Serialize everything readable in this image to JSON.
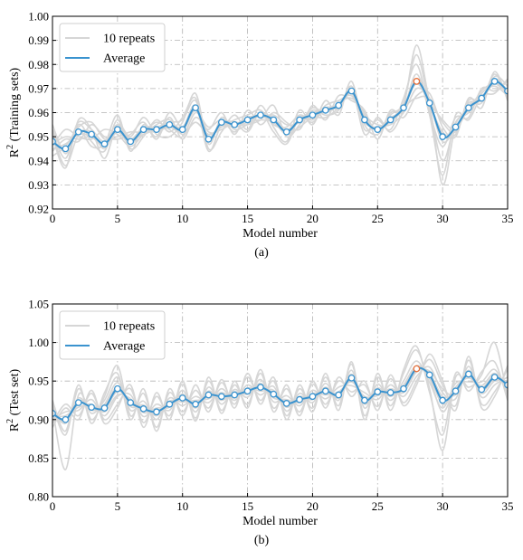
{
  "chart_data": [
    {
      "type": "line",
      "panel_label": "(a)",
      "xlabel": "Model number",
      "ylabel_main": "R",
      "ylabel_sup": "2",
      "ylabel_rest": "(Training sets)",
      "xlim": [
        0,
        35
      ],
      "ylim": [
        0.92,
        1.0
      ],
      "xticks": [
        "0",
        "5",
        "10",
        "15",
        "20",
        "25",
        "30",
        "35"
      ],
      "yticks": [
        "0.92",
        "0.93",
        "0.94",
        "0.95",
        "0.96",
        "0.97",
        "0.98",
        "0.99",
        "1.00"
      ],
      "grid": true,
      "legend": {
        "placement": "top-left",
        "entries": [
          "10 repeats",
          "Average"
        ]
      },
      "colors": {
        "repeats": "#d6d6d6",
        "average": "#3a93cf",
        "highlight": "#e8703a"
      },
      "highlight_x": 28,
      "x": [
        0,
        1,
        2,
        3,
        4,
        5,
        6,
        7,
        8,
        9,
        10,
        11,
        12,
        13,
        14,
        15,
        16,
        17,
        18,
        19,
        20,
        21,
        22,
        23,
        24,
        25,
        26,
        27,
        28,
        29,
        30,
        31,
        32,
        33,
        34,
        35
      ],
      "series": [
        {
          "name": "Average",
          "values": [
            0.948,
            0.945,
            0.952,
            0.951,
            0.947,
            0.953,
            0.948,
            0.953,
            0.953,
            0.955,
            0.953,
            0.962,
            0.949,
            0.956,
            0.955,
            0.957,
            0.959,
            0.957,
            0.952,
            0.957,
            0.959,
            0.961,
            0.963,
            0.969,
            0.957,
            0.953,
            0.957,
            0.962,
            0.973,
            0.964,
            0.95,
            0.954,
            0.962,
            0.966,
            0.973,
            0.969
          ]
        },
        {
          "name": "10 repeats",
          "values": [
            0.952,
            0.941,
            0.955,
            0.948,
            0.944,
            0.957,
            0.945,
            0.95,
            0.957,
            0.952,
            0.958,
            0.966,
            0.945,
            0.952,
            0.959,
            0.953,
            0.963,
            0.954,
            0.948,
            0.961,
            0.955,
            0.965,
            0.959,
            0.973,
            0.953,
            0.957,
            0.953,
            0.966,
            0.98,
            0.96,
            0.946,
            0.958,
            0.958,
            0.97,
            0.969,
            0.973
          ]
        },
        {
          "values": [
            0.944,
            0.949,
            0.948,
            0.955,
            0.95,
            0.949,
            0.951,
            0.956,
            0.949,
            0.958,
            0.949,
            0.958,
            0.953,
            0.96,
            0.951,
            0.961,
            0.955,
            0.96,
            0.956,
            0.953,
            0.963,
            0.957,
            0.967,
            0.965,
            0.961,
            0.949,
            0.961,
            0.958,
            0.967,
            0.968,
            0.954,
            0.95,
            0.966,
            0.962,
            0.977,
            0.965
          ]
        },
        {
          "values": [
            0.95,
            0.937,
            0.957,
            0.953,
            0.941,
            0.955,
            0.95,
            0.958,
            0.951,
            0.95,
            0.956,
            0.968,
            0.947,
            0.958,
            0.953,
            0.955,
            0.957,
            0.963,
            0.95,
            0.955,
            0.961,
            0.959,
            0.961,
            0.971,
            0.955,
            0.951,
            0.959,
            0.964,
            0.984,
            0.962,
            0.94,
            0.956,
            0.96,
            0.968,
            0.971,
            0.967
          ]
        },
        {
          "values": [
            0.946,
            0.953,
            0.95,
            0.949,
            0.953,
            0.951,
            0.946,
            0.951,
            0.955,
            0.957,
            0.951,
            0.956,
            0.951,
            0.954,
            0.957,
            0.959,
            0.961,
            0.955,
            0.954,
            0.959,
            0.957,
            0.963,
            0.965,
            0.967,
            0.959,
            0.955,
            0.955,
            0.96,
            0.97,
            0.966,
            0.956,
            0.952,
            0.964,
            0.964,
            0.975,
            0.971
          ]
        },
        {
          "values": [
            0.955,
            0.943,
            0.953,
            0.946,
            0.947,
            0.959,
            0.944,
            0.955,
            0.95,
            0.96,
            0.954,
            0.963,
            0.944,
            0.955,
            0.956,
            0.952,
            0.96,
            0.952,
            0.947,
            0.958,
            0.956,
            0.962,
            0.962,
            0.97,
            0.951,
            0.958,
            0.952,
            0.961,
            0.976,
            0.959,
            0.934,
            0.959,
            0.957,
            0.967,
            0.968,
            0.974
          ]
        },
        {
          "values": [
            0.942,
            0.946,
            0.954,
            0.956,
            0.949,
            0.95,
            0.952,
            0.952,
            0.956,
            0.953,
            0.95,
            0.96,
            0.954,
            0.957,
            0.952,
            0.958,
            0.958,
            0.959,
            0.955,
            0.956,
            0.962,
            0.96,
            0.964,
            0.966,
            0.96,
            0.952,
            0.96,
            0.963,
            0.988,
            0.965,
            0.952,
            0.951,
            0.965,
            0.965,
            0.976,
            0.966
          ]
        },
        {
          "values": [
            0.951,
            0.938,
            0.951,
            0.952,
            0.945,
            0.954,
            0.949,
            0.954,
            0.954,
            0.956,
            0.957,
            0.965,
            0.948,
            0.957,
            0.954,
            0.956,
            0.957,
            0.956,
            0.951,
            0.954,
            0.958,
            0.958,
            0.962,
            0.968,
            0.956,
            0.954,
            0.956,
            0.962,
            0.966,
            0.963,
            0.93,
            0.955,
            0.961,
            0.969,
            0.972,
            0.968
          ]
        },
        {
          "values": [
            0.947,
            0.95,
            0.949,
            0.95,
            0.946,
            0.952,
            0.947,
            0.952,
            0.952,
            0.954,
            0.952,
            0.961,
            0.95,
            0.955,
            0.955,
            0.957,
            0.959,
            0.958,
            0.953,
            0.957,
            0.96,
            0.961,
            0.963,
            0.969,
            0.958,
            0.953,
            0.957,
            0.962,
            0.972,
            0.964,
            0.957,
            0.953,
            0.962,
            0.966,
            0.973,
            0.969
          ]
        },
        {
          "values": [
            0.953,
            0.944,
            0.956,
            0.953,
            0.948,
            0.955,
            0.949,
            0.951,
            0.953,
            0.955,
            0.954,
            0.961,
            0.952,
            0.953,
            0.956,
            0.955,
            0.96,
            0.956,
            0.952,
            0.957,
            0.958,
            0.962,
            0.963,
            0.968,
            0.957,
            0.953,
            0.958,
            0.961,
            0.974,
            0.964,
            0.948,
            0.954,
            0.963,
            0.966,
            0.974,
            0.969
          ]
        },
        {
          "values": [
            0.945,
            0.947,
            0.951,
            0.95,
            0.946,
            0.952,
            0.947,
            0.954,
            0.952,
            0.955,
            0.952,
            0.963,
            0.95,
            0.956,
            0.955,
            0.958,
            0.958,
            0.957,
            0.951,
            0.957,
            0.96,
            0.96,
            0.963,
            0.969,
            0.957,
            0.953,
            0.957,
            0.963,
            0.973,
            0.964,
            0.951,
            0.953,
            0.962,
            0.966,
            0.972,
            0.969
          ]
        }
      ]
    },
    {
      "type": "line",
      "panel_label": "(b)",
      "xlabel": "Model number",
      "ylabel_main": "R",
      "ylabel_sup": "2",
      "ylabel_rest": "(Test set)",
      "xlim": [
        0,
        35
      ],
      "ylim": [
        0.8,
        1.05
      ],
      "xticks": [
        "0",
        "5",
        "10",
        "15",
        "20",
        "25",
        "30",
        "35"
      ],
      "yticks": [
        "0.80",
        "0.85",
        "0.90",
        "0.95",
        "1.00",
        "1.05"
      ],
      "grid": true,
      "legend": {
        "placement": "top-left",
        "entries": [
          "10 repeats",
          "Average"
        ]
      },
      "colors": {
        "repeats": "#d6d6d6",
        "average": "#3a93cf",
        "highlight": "#e8703a"
      },
      "highlight_x": 28,
      "x": [
        0,
        1,
        2,
        3,
        4,
        5,
        6,
        7,
        8,
        9,
        10,
        11,
        12,
        13,
        14,
        15,
        16,
        17,
        18,
        19,
        20,
        21,
        22,
        23,
        24,
        25,
        26,
        27,
        28,
        29,
        30,
        31,
        32,
        33,
        34,
        35
      ],
      "series": [
        {
          "name": "Average",
          "values": [
            0.908,
            0.9,
            0.922,
            0.916,
            0.915,
            0.94,
            0.922,
            0.914,
            0.91,
            0.92,
            0.928,
            0.92,
            0.932,
            0.93,
            0.932,
            0.937,
            0.942,
            0.933,
            0.921,
            0.926,
            0.93,
            0.937,
            0.932,
            0.954,
            0.925,
            0.936,
            0.935,
            0.94,
            0.966,
            0.958,
            0.925,
            0.937,
            0.959,
            0.939,
            0.955,
            0.945
          ]
        },
        {
          "name": "10 repeats",
          "values": [
            0.915,
            0.835,
            0.932,
            0.908,
            0.925,
            0.955,
            0.912,
            0.924,
            0.9,
            0.928,
            0.918,
            0.93,
            0.922,
            0.94,
            0.925,
            0.945,
            0.932,
            0.943,
            0.911,
            0.934,
            0.922,
            0.947,
            0.925,
            0.964,
            0.915,
            0.946,
            0.925,
            0.95,
            0.976,
            0.948,
            0.915,
            0.947,
            0.949,
            0.949,
            0.965,
            0.935
          ]
        },
        {
          "values": [
            0.9,
            0.91,
            0.912,
            0.926,
            0.905,
            0.93,
            0.932,
            0.904,
            0.92,
            0.912,
            0.938,
            0.91,
            0.942,
            0.92,
            0.939,
            0.929,
            0.952,
            0.923,
            0.931,
            0.918,
            0.938,
            0.927,
            0.942,
            0.944,
            0.935,
            0.926,
            0.945,
            0.93,
            0.956,
            0.968,
            0.935,
            0.927,
            0.969,
            0.929,
            0.945,
            0.955
          ]
        },
        {
          "values": [
            0.92,
            0.88,
            0.94,
            0.9,
            0.93,
            0.97,
            0.905,
            0.934,
            0.89,
            0.935,
            0.91,
            0.938,
            0.915,
            0.948,
            0.92,
            0.955,
            0.925,
            0.95,
            0.905,
            0.94,
            0.915,
            0.955,
            0.918,
            0.972,
            0.905,
            0.955,
            0.918,
            0.96,
            0.99,
            0.94,
            0.86,
            0.955,
            0.942,
            0.958,
            1.0,
            0.928
          ]
        },
        {
          "values": [
            0.895,
            0.92,
            0.905,
            0.934,
            0.9,
            0.92,
            0.94,
            0.896,
            0.93,
            0.905,
            0.946,
            0.902,
            0.95,
            0.912,
            0.945,
            0.92,
            0.96,
            0.915,
            0.94,
            0.91,
            0.946,
            0.92,
            0.95,
            0.936,
            0.945,
            0.917,
            0.953,
            0.922,
            0.95,
            0.978,
            0.945,
            0.918,
            0.977,
            0.92,
            0.936,
            0.965
          ]
        },
        {
          "values": [
            0.912,
            0.895,
            0.928,
            0.912,
            0.92,
            0.948,
            0.917,
            0.919,
            0.905,
            0.924,
            0.923,
            0.925,
            0.927,
            0.935,
            0.928,
            0.941,
            0.937,
            0.938,
            0.916,
            0.93,
            0.926,
            0.942,
            0.928,
            0.959,
            0.92,
            0.941,
            0.93,
            0.945,
            0.97,
            0.953,
            0.91,
            0.942,
            0.954,
            0.944,
            0.96,
            0.94
          ]
        },
        {
          "values": [
            0.904,
            0.905,
            0.916,
            0.92,
            0.91,
            0.932,
            0.927,
            0.909,
            0.915,
            0.916,
            0.933,
            0.915,
            0.937,
            0.925,
            0.936,
            0.933,
            0.947,
            0.928,
            0.926,
            0.922,
            0.934,
            0.932,
            0.936,
            0.949,
            0.93,
            0.931,
            0.94,
            0.935,
            0.962,
            0.963,
            0.94,
            0.932,
            0.964,
            0.934,
            0.95,
            0.95
          ]
        },
        {
          "values": [
            0.925,
            0.885,
            0.945,
            0.895,
            0.935,
            0.96,
            0.9,
            0.94,
            0.885,
            0.94,
            0.905,
            0.945,
            0.91,
            0.952,
            0.915,
            0.96,
            0.92,
            0.955,
            0.9,
            0.945,
            0.91,
            0.96,
            0.912,
            0.975,
            0.9,
            0.96,
            0.912,
            0.965,
            0.995,
            0.935,
            0.88,
            0.96,
            0.937,
            0.962,
            0.975,
            0.925
          ]
        },
        {
          "values": [
            0.89,
            0.915,
            0.9,
            0.938,
            0.895,
            0.915,
            0.945,
            0.89,
            0.935,
            0.9,
            0.95,
            0.898,
            0.955,
            0.908,
            0.95,
            0.915,
            0.965,
            0.91,
            0.945,
            0.905,
            0.95,
            0.915,
            0.955,
            0.93,
            0.95,
            0.912,
            0.958,
            0.918,
            0.945,
            0.985,
            0.95,
            0.912,
            0.982,
            0.915,
            0.93,
            0.97
          ]
        },
        {
          "values": [
            0.91,
            0.9,
            0.925,
            0.914,
            0.917,
            0.943,
            0.92,
            0.916,
            0.908,
            0.922,
            0.926,
            0.922,
            0.93,
            0.932,
            0.93,
            0.939,
            0.94,
            0.935,
            0.919,
            0.928,
            0.928,
            0.939,
            0.93,
            0.956,
            0.923,
            0.938,
            0.933,
            0.942,
            0.968,
            0.956,
            0.92,
            0.939,
            0.957,
            0.941,
            0.957,
            0.943
          ]
        },
        {
          "values": [
            0.906,
            0.898,
            0.92,
            0.918,
            0.913,
            0.937,
            0.924,
            0.912,
            0.912,
            0.918,
            0.93,
            0.918,
            0.934,
            0.928,
            0.934,
            0.935,
            0.944,
            0.931,
            0.923,
            0.924,
            0.932,
            0.935,
            0.934,
            0.952,
            0.927,
            0.934,
            0.937,
            0.938,
            0.964,
            0.96,
            0.93,
            0.935,
            0.961,
            0.937,
            0.953,
            0.947
          ]
        }
      ]
    }
  ]
}
